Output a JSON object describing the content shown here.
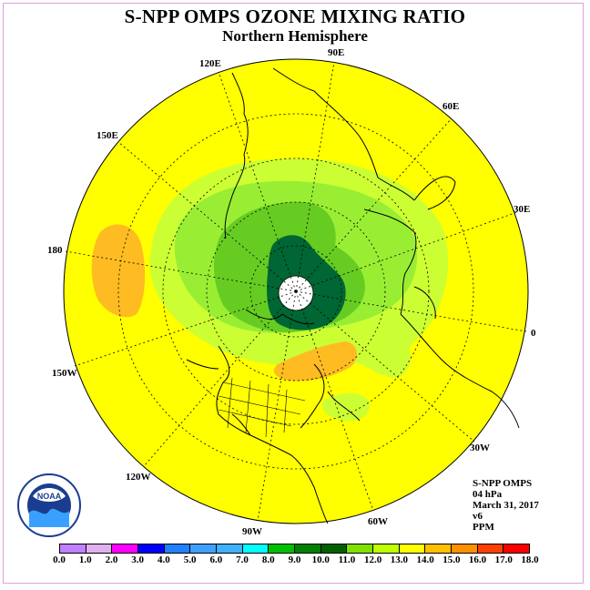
{
  "title": "S-NPP OMPS OZONE MIXING RATIO",
  "subtitle": "Northern Hemisphere",
  "info": [
    "S-NPP OMPS",
    "04 hPa",
    "March 31, 2017",
    "v6",
    "PPM"
  ],
  "longitude_labels": [
    "90E",
    "60E",
    "30E",
    "0",
    "30W",
    "60W",
    "90W",
    "120W",
    "150W",
    "180",
    "150E",
    "120E"
  ],
  "colorbar": {
    "ticks": [
      "0.0",
      "1.0",
      "2.0",
      "3.0",
      "4.0",
      "5.0",
      "6.0",
      "7.0",
      "8.0",
      "9.0",
      "10.0",
      "11.0",
      "12.0",
      "13.0",
      "14.0",
      "15.0",
      "16.0",
      "17.0",
      "18.0"
    ],
    "colors": [
      "#c080ff",
      "#e0b0f0",
      "#ff00ff",
      "#0000ff",
      "#2080ff",
      "#40a0ff",
      "#40b0ff",
      "#00ffff",
      "#00c000",
      "#008000",
      "#006000",
      "#80e000",
      "#c0ff00",
      "#ffff00",
      "#ffc000",
      "#ff9000",
      "#ff4000",
      "#ff0000",
      "#a05000"
    ],
    "unit": "PPM"
  },
  "logo": {
    "text": "NOAA"
  },
  "colors": {
    "background_level": "#ffff00",
    "light_green": "#ccff33",
    "green": "#99ee33",
    "mid_green": "#66cc22",
    "dark_green": "#006633",
    "orange": "#ffbb22"
  }
}
